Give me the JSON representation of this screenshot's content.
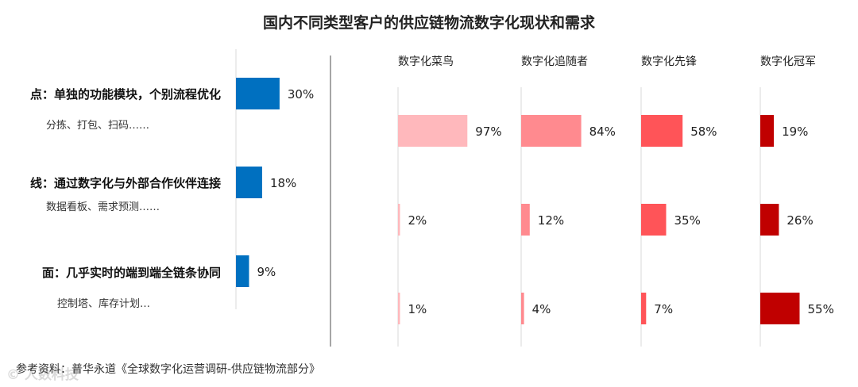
{
  "chart_data": [
    {
      "type": "bar",
      "title": "国内不同类型客户的供应链物流数字化现状和需求",
      "categories": [
        "点：单独的功能模块，个别流程优化",
        "线：通过数字化与外部合作伙伴连接",
        "面：几乎实时的端到端全链条协同"
      ],
      "category_examples": [
        "分拣、打包、扫码……",
        "数据看板、需求预测……",
        "控制塔、库存计划…"
      ],
      "values": [
        30,
        18,
        9
      ],
      "value_labels": [
        "30%",
        "18%",
        "9%"
      ],
      "color": "#0070C0"
    },
    {
      "type": "bar",
      "categories": [
        "点：单独的功能模块，个别流程优化",
        "线：通过数字化与外部合作伙伴连接",
        "面：几乎实时的端到端全链条协同"
      ],
      "series": [
        {
          "name": "数字化菜鸟",
          "values": [
            97,
            2,
            1
          ],
          "value_labels": [
            "97%",
            "2%",
            "1%"
          ],
          "color": "#FFB8BC"
        },
        {
          "name": "数字化追随者",
          "values": [
            84,
            12,
            4
          ],
          "value_labels": [
            "84%",
            "12%",
            "4%"
          ],
          "color": "#FF8A8F"
        },
        {
          "name": "数字化先锋",
          "values": [
            58,
            35,
            7
          ],
          "value_labels": [
            "58%",
            "35%",
            "7%"
          ],
          "color": "#FF5458"
        },
        {
          "name": "数字化冠军",
          "values": [
            19,
            26,
            55
          ],
          "value_labels": [
            "19%",
            "26%",
            "55%"
          ],
          "color": "#C00000"
        }
      ]
    }
  ],
  "footer": {
    "source": "参考资料：普华永道《全球数字化运营调研-供应链物流部分》",
    "watermark": "© 人数科技"
  }
}
